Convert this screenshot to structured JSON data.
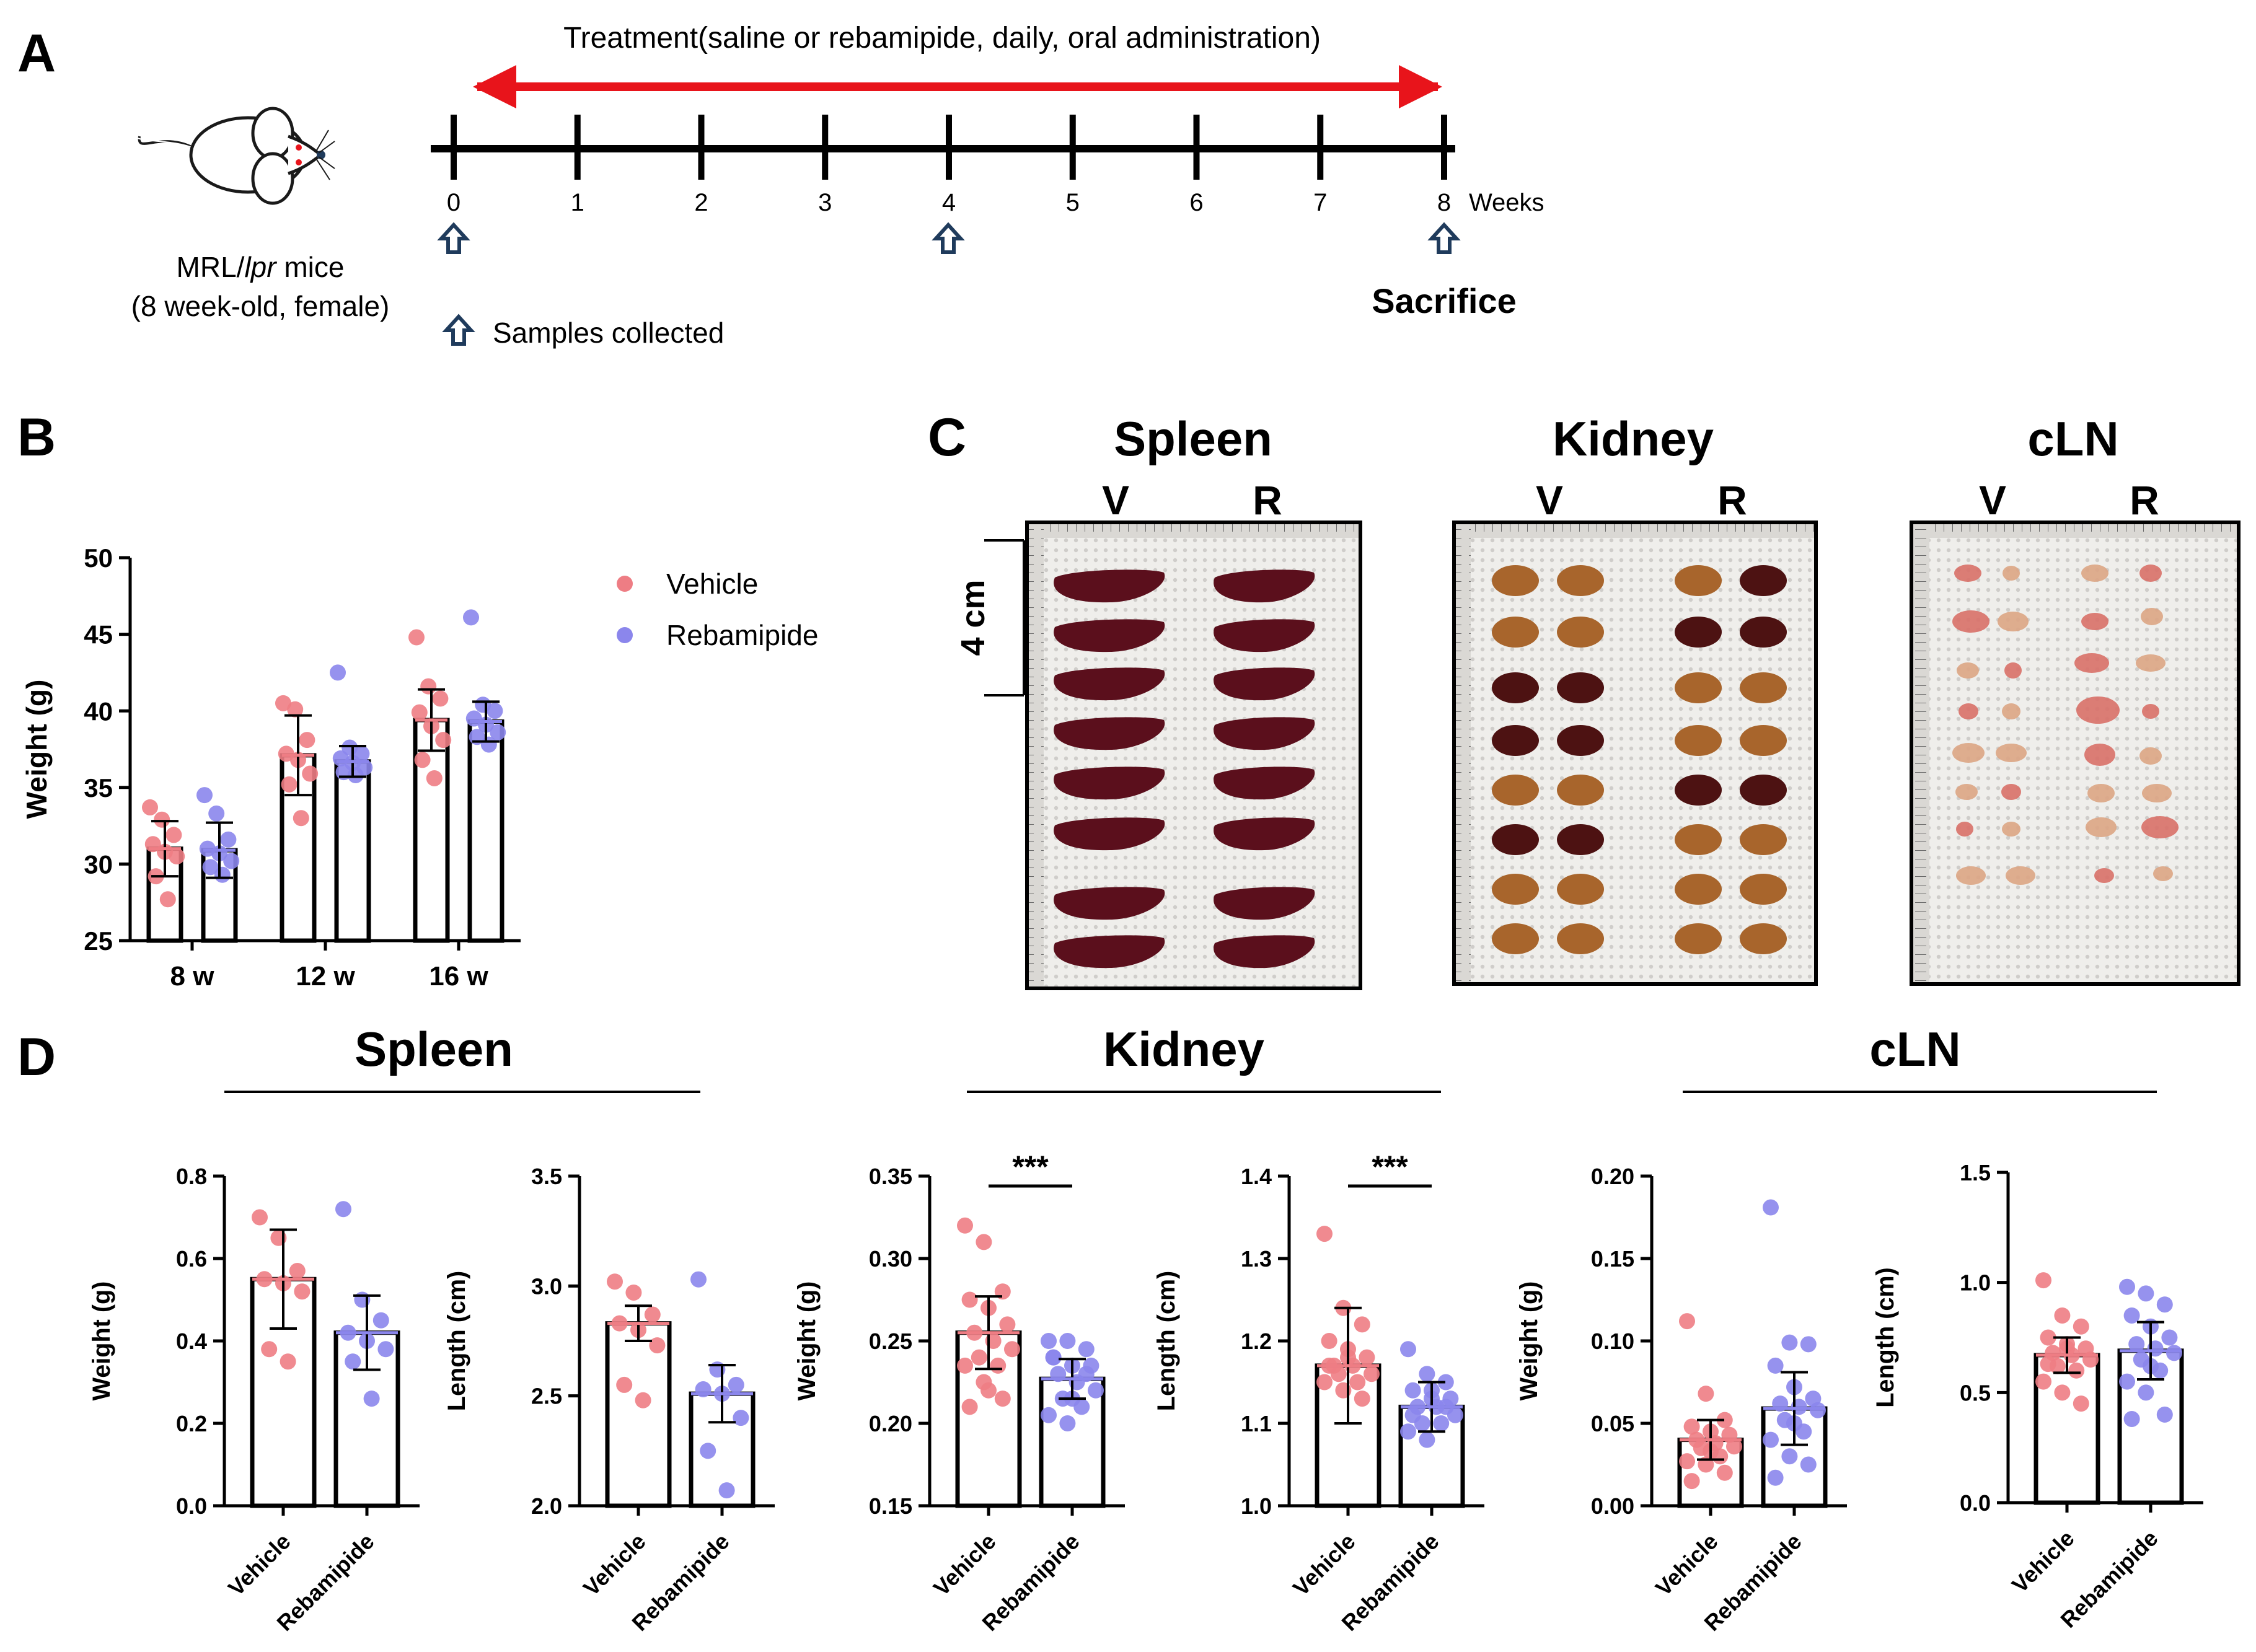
{
  "colors": {
    "vehicle": "#ee7d84",
    "rebamipide": "#8b86ec",
    "arrow_red": "#e8141b",
    "arrow_navy": "#1f3b5c",
    "axis": "#000000",
    "organ_spleen": "#5b0f1c",
    "kidney_tan": "#a8652c",
    "kidney_dark": "#4d1212",
    "node": "#dca584",
    "board": "#ececea"
  },
  "panel_a": {
    "letter": "A",
    "treatment": "Treatment(saline or rebamipide, daily, oral administration)",
    "ticks": [
      "0",
      "1",
      "2",
      "3",
      "4",
      "5",
      "6",
      "7",
      "8"
    ],
    "weeks_label": "Weeks",
    "mouse_strain_prefix": "MRL/",
    "mouse_strain_italic": "lpr",
    "mouse_strain_suffix": " mice",
    "mouse_age": "(8 week-old, female)",
    "samples_collected": "Samples collected",
    "sacrifice": "Sacrifice",
    "mouse_icon": "mouse-icon",
    "arrow_icon": "up-arrow-icon"
  },
  "panel_b": {
    "letter": "B",
    "legend": [
      "Vehicle",
      "Rebamipide"
    ]
  },
  "panel_c": {
    "letter": "C",
    "organs": [
      {
        "title": "Spleen",
        "v": "V",
        "r": "R"
      },
      {
        "title": "Kidney",
        "v": "V",
        "r": "R"
      },
      {
        "title": "cLN",
        "v": "V",
        "r": "R"
      }
    ],
    "scale_label": "4 cm"
  },
  "panel_d": {
    "letter": "D",
    "groups": [
      "Spleen",
      "Kidney",
      "cLN"
    ]
  },
  "chart_data": [
    {
      "id": "B",
      "type": "bar",
      "title": "",
      "xlabel": "",
      "ylabel": "Weight (g)",
      "ylim": [
        25,
        50
      ],
      "yticks": [
        25,
        30,
        35,
        40,
        45,
        50
      ],
      "categories": [
        "8 w",
        "12 w",
        "16 w"
      ],
      "series": [
        {
          "name": "Vehicle",
          "means": [
            31.0,
            37.1,
            39.4
          ],
          "sd": [
            1.8,
            2.6,
            2.0
          ],
          "points": [
            [
              33.7,
              32.9,
              31.9,
              31.3,
              30.8,
              30.5,
              29.2,
              27.7
            ],
            [
              40.5,
              40.1,
              38.1,
              37.2,
              36.8,
              35.9,
              35.2,
              33.0
            ],
            [
              44.8,
              41.6,
              40.8,
              39.9,
              39.0,
              38.1,
              36.8,
              35.6
            ]
          ]
        },
        {
          "name": "Rebamipide",
          "means": [
            30.9,
            36.7,
            39.3
          ],
          "sd": [
            1.8,
            1.0,
            1.3
          ],
          "points": [
            [
              34.5,
              33.3,
              31.6,
              31.0,
              30.7,
              30.2,
              29.8,
              29.3
            ],
            [
              42.5,
              37.6,
              37.2,
              36.9,
              36.6,
              36.3,
              36.0,
              35.8
            ],
            [
              46.1,
              40.4,
              40.0,
              39.5,
              39.1,
              38.6,
              38.3,
              37.8
            ]
          ]
        }
      ]
    },
    {
      "id": "D-spleen-weight",
      "type": "bar",
      "ylabel": "Weight (g)",
      "ylim": [
        0,
        0.8
      ],
      "yticks": [
        0.0,
        0.2,
        0.4,
        0.6,
        0.8
      ],
      "categories": [
        "Vehicle",
        "Rebamipide"
      ],
      "means": [
        0.55,
        0.42
      ],
      "sd": [
        0.12,
        0.09
      ],
      "significance": "",
      "points": [
        [
          0.7,
          0.65,
          0.57,
          0.55,
          0.54,
          0.52,
          0.38,
          0.35
        ],
        [
          0.72,
          0.5,
          0.45,
          0.42,
          0.4,
          0.38,
          0.35,
          0.26
        ]
      ]
    },
    {
      "id": "D-spleen-length",
      "type": "bar",
      "ylabel": "Length (cm)",
      "ylim": [
        2.0,
        3.5
      ],
      "yticks": [
        2.0,
        2.5,
        3.0,
        3.5
      ],
      "categories": [
        "Vehicle",
        "Rebamipide"
      ],
      "means": [
        2.83,
        2.51
      ],
      "sd": [
        0.08,
        0.13
      ],
      "significance": "",
      "points": [
        [
          3.02,
          2.97,
          2.87,
          2.83,
          2.8,
          2.73,
          2.55,
          2.48
        ],
        [
          3.03,
          2.62,
          2.55,
          2.53,
          2.51,
          2.4,
          2.25,
          2.07
        ]
      ]
    },
    {
      "id": "D-kidney-weight",
      "type": "bar",
      "ylabel": "Weight (g)",
      "ylim": [
        0.15,
        0.35
      ],
      "yticks": [
        0.15,
        0.2,
        0.25,
        0.3,
        0.35
      ],
      "categories": [
        "Vehicle",
        "Rebamipide"
      ],
      "means": [
        0.255,
        0.227
      ],
      "sd": [
        0.022,
        0.012
      ],
      "significance": "***",
      "points": [
        [
          0.32,
          0.31,
          0.28,
          0.275,
          0.27,
          0.26,
          0.255,
          0.25,
          0.245,
          0.24,
          0.235,
          0.235,
          0.225,
          0.215,
          0.21,
          0.22
        ],
        [
          0.25,
          0.25,
          0.245,
          0.24,
          0.235,
          0.235,
          0.23,
          0.225,
          0.22,
          0.215,
          0.21,
          0.205,
          0.2,
          0.23,
          0.24,
          0.215
        ]
      ]
    },
    {
      "id": "D-kidney-length",
      "type": "bar",
      "ylabel": "Length (cm)",
      "ylim": [
        1.0,
        1.4
      ],
      "yticks": [
        1.0,
        1.1,
        1.2,
        1.3,
        1.4
      ],
      "categories": [
        "Vehicle",
        "Rebamipide"
      ],
      "means": [
        1.17,
        1.12
      ],
      "sd": [
        0.07,
        0.03
      ],
      "significance": "***",
      "points": [
        [
          1.33,
          1.24,
          1.22,
          1.2,
          1.18,
          1.18,
          1.17,
          1.17,
          1.16,
          1.16,
          1.15,
          1.15,
          1.14,
          1.13,
          1.17,
          1.19
        ],
        [
          1.19,
          1.16,
          1.15,
          1.14,
          1.13,
          1.13,
          1.12,
          1.12,
          1.11,
          1.1,
          1.1,
          1.09,
          1.08,
          1.12,
          1.11,
          1.14
        ]
      ]
    },
    {
      "id": "D-cln-weight",
      "type": "bar",
      "ylabel": "Weight (g)",
      "ylim": [
        0,
        0.2
      ],
      "yticks": [
        0.0,
        0.05,
        0.1,
        0.15,
        0.2
      ],
      "categories": [
        "Vehicle",
        "Rebamipide"
      ],
      "means": [
        0.04,
        0.059
      ],
      "sd": [
        0.012,
        0.022
      ],
      "significance": "",
      "points": [
        [
          0.112,
          0.068,
          0.052,
          0.048,
          0.045,
          0.043,
          0.04,
          0.038,
          0.036,
          0.035,
          0.03,
          0.027,
          0.025,
          0.02,
          0.015,
          0.033
        ],
        [
          0.181,
          0.099,
          0.098,
          0.085,
          0.072,
          0.065,
          0.062,
          0.06,
          0.058,
          0.052,
          0.045,
          0.04,
          0.03,
          0.025,
          0.017,
          0.05
        ]
      ]
    },
    {
      "id": "D-cln-length",
      "type": "bar",
      "ylabel": "Length (cm)",
      "ylim": [
        0,
        1.5
      ],
      "yticks": [
        0.0,
        0.5,
        1.0,
        1.5
      ],
      "categories": [
        "Vehicle",
        "Rebamipide"
      ],
      "means": [
        0.67,
        0.69
      ],
      "sd": [
        0.08,
        0.13
      ],
      "significance": "",
      "points": [
        [
          1.01,
          0.85,
          0.8,
          0.75,
          0.72,
          0.7,
          0.68,
          0.67,
          0.65,
          0.62,
          0.6,
          0.55,
          0.5,
          0.45,
          0.63,
          0.7
        ],
        [
          0.98,
          0.95,
          0.9,
          0.85,
          0.8,
          0.75,
          0.72,
          0.7,
          0.68,
          0.65,
          0.6,
          0.55,
          0.5,
          0.4,
          0.38,
          0.62
        ]
      ]
    }
  ]
}
